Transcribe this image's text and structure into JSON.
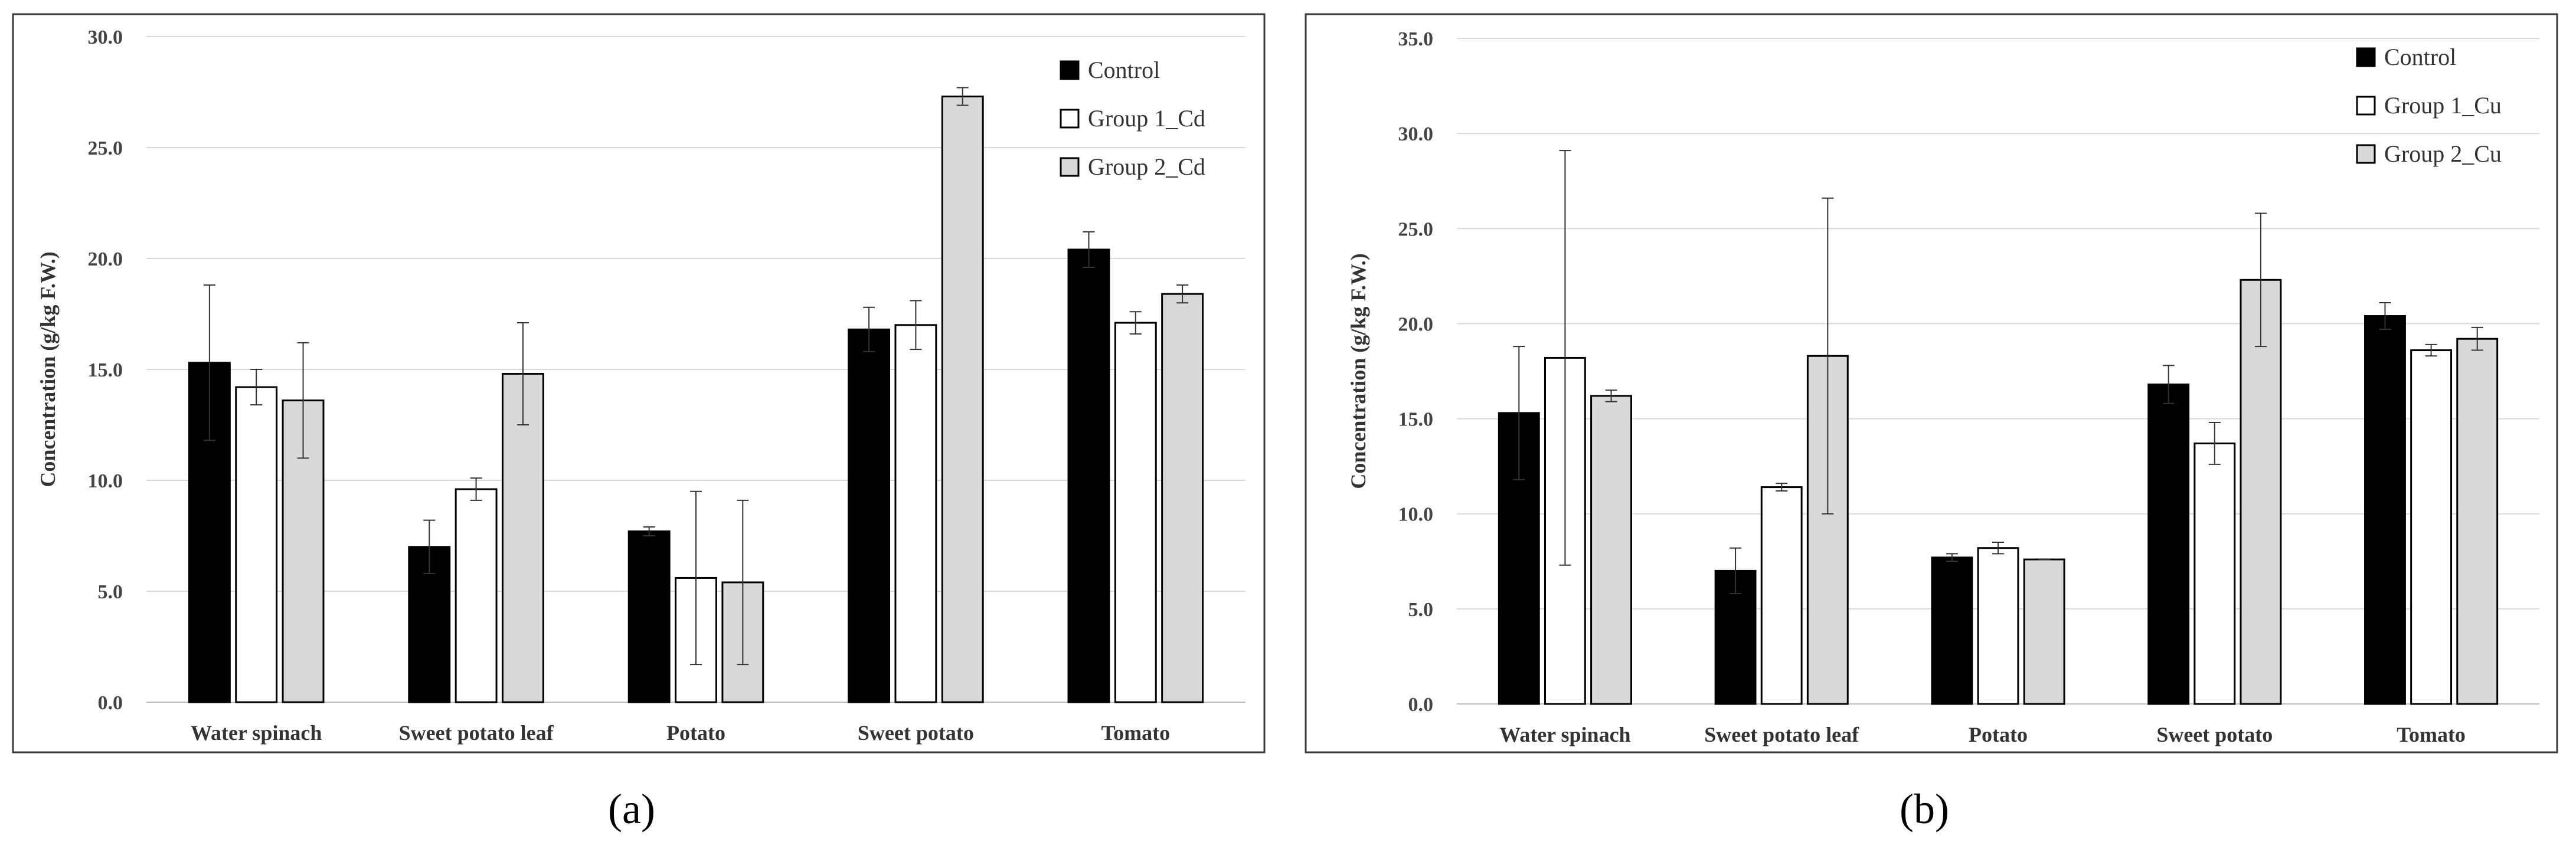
{
  "chart_data": [
    {
      "type": "bar",
      "panel_label": "(a)",
      "title": "",
      "xlabel": "",
      "ylabel": "Concentration (g/kg F.W.)",
      "ylim": [
        0,
        30
      ],
      "ytick_step": 5,
      "yticks": [
        "0.0",
        "5.0",
        "10.0",
        "15.0",
        "20.0",
        "25.0",
        "30.0"
      ],
      "grid": true,
      "legend_position": "top-right",
      "categories": [
        "Water spinach",
        "Sweet potato leaf",
        "Potato",
        "Sweet potato",
        "Tomato"
      ],
      "series": [
        {
          "name": "Control",
          "color": "#000000",
          "values": [
            15.3,
            7.0,
            7.7,
            16.8,
            20.4
          ],
          "errors": [
            3.5,
            1.2,
            0.2,
            1.0,
            0.8
          ]
        },
        {
          "name": "Group 1_Cd",
          "color": "#ffffff",
          "values": [
            14.2,
            9.6,
            5.6,
            17.0,
            17.1
          ],
          "errors": [
            0.8,
            0.5,
            3.9,
            1.1,
            0.5
          ]
        },
        {
          "name": "Group 2_Cd",
          "color": "#d9d9d9",
          "values": [
            13.6,
            14.8,
            5.4,
            27.3,
            18.4
          ],
          "errors": [
            2.6,
            2.3,
            3.7,
            0.4,
            0.4
          ]
        }
      ]
    },
    {
      "type": "bar",
      "panel_label": "(b)",
      "title": "",
      "xlabel": "",
      "ylabel": "Concentration (g/kg F.W.)",
      "ylim": [
        0,
        35
      ],
      "ytick_step": 5,
      "yticks": [
        "0.0",
        "5.0",
        "10.0",
        "15.0",
        "20.0",
        "25.0",
        "30.0",
        "35.0"
      ],
      "grid": true,
      "legend_position": "top-right",
      "categories": [
        "Water spinach",
        "Sweet potato leaf",
        "Potato",
        "Sweet potato",
        "Tomato"
      ],
      "series": [
        {
          "name": "Control",
          "color": "#000000",
          "values": [
            15.3,
            7.0,
            7.7,
            16.8,
            20.4
          ],
          "errors": [
            3.5,
            1.2,
            0.2,
            1.0,
            0.7
          ]
        },
        {
          "name": "Group 1_Cu",
          "color": "#ffffff",
          "values": [
            18.2,
            11.4,
            8.2,
            13.7,
            18.6
          ],
          "errors": [
            10.9,
            0.2,
            0.3,
            1.1,
            0.3
          ]
        },
        {
          "name": "Group 2_Cu",
          "color": "#d9d9d9",
          "values": [
            16.2,
            18.3,
            7.6,
            22.3,
            19.2
          ],
          "errors": [
            0.3,
            8.3,
            0.0,
            3.5,
            0.6
          ]
        }
      ]
    }
  ]
}
